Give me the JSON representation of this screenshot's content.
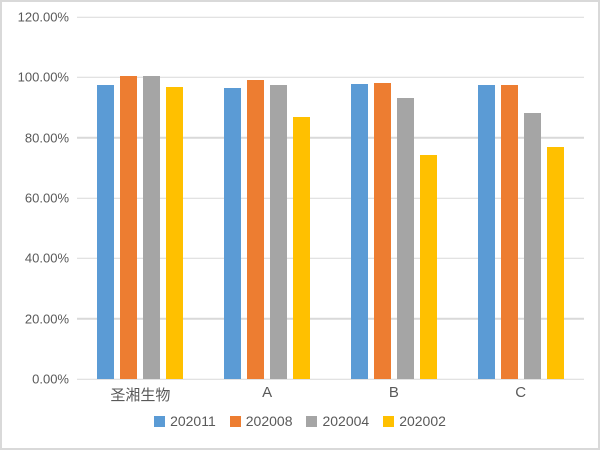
{
  "chart_data": {
    "type": "bar",
    "title": "",
    "categories": [
      "圣湘生物",
      "A",
      "B",
      "C"
    ],
    "series": [
      {
        "name": "202011",
        "color": "#5B9BD5",
        "values": [
          97.3,
          96.5,
          97.9,
          97.5
        ]
      },
      {
        "name": "202008",
        "color": "#ED7D31",
        "values": [
          100.6,
          99.2,
          98.0,
          97.5
        ]
      },
      {
        "name": "202004",
        "color": "#A5A5A5",
        "values": [
          100.4,
          97.3,
          93.3,
          88.3
        ]
      },
      {
        "name": "202002",
        "color": "#FFC000",
        "values": [
          96.8,
          86.7,
          74.2,
          76.8
        ]
      }
    ],
    "xlabel": "",
    "ylabel": "",
    "ylim": [
      0,
      120
    ],
    "ytick_step": 20,
    "yticks": [
      "0.00%",
      "20.00%",
      "40.00%",
      "60.00%",
      "80.00%",
      "100.00%",
      "120.00%"
    ],
    "grid": true,
    "legend_position": "bottom"
  },
  "colors": {
    "background": "#FFFFFF",
    "gridline": "#D9D9D9",
    "axis_text": "#595959",
    "frame_border": "#D9D9D9"
  }
}
